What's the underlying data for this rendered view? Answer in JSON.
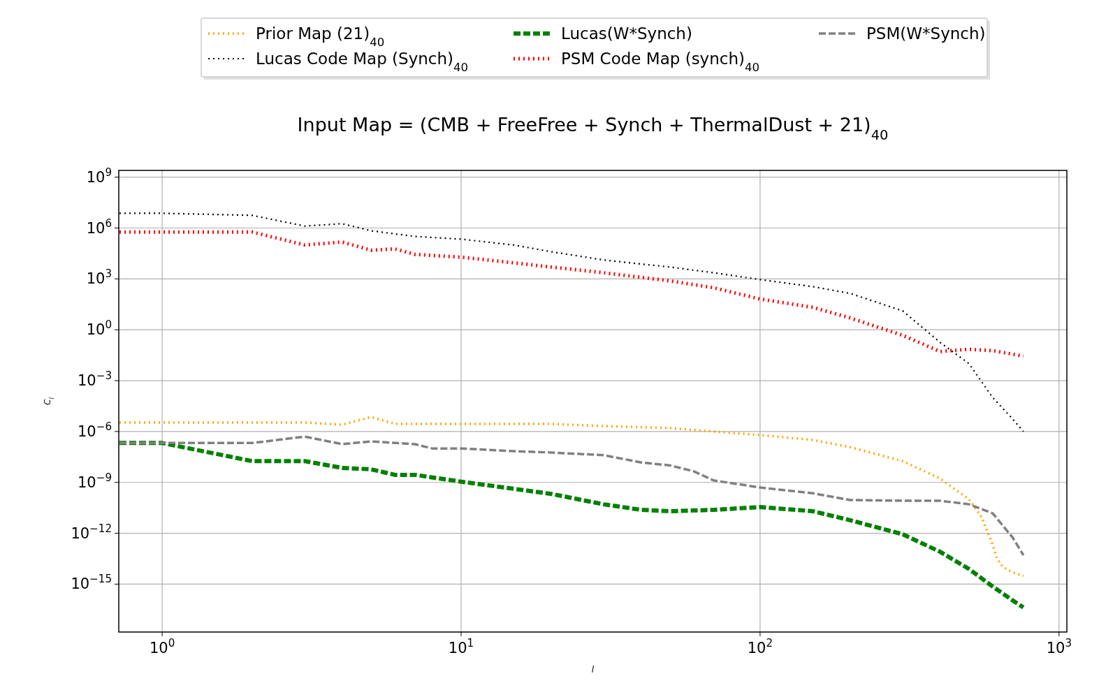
{
  "chart_data": {
    "type": "line",
    "title": "Input Map  = (CMB + FreeFree + Synch + ThermalDust + 21)$_{40}$",
    "xlabel": "l",
    "ylabel": "C$_{l}$",
    "log": "xy",
    "grid": true,
    "legend": "top",
    "xlim": [
      0.716,
      1062
    ],
    "ylim": [
      1.5e-18,
      2500000000.0
    ],
    "xticks": [
      {
        "value": 1,
        "label": "10$^{0}$"
      },
      {
        "value": 10,
        "label": "10$^{1}$"
      },
      {
        "value": 100,
        "label": "10$^{2}$"
      },
      {
        "value": 1000,
        "label": "10$^{3}$"
      }
    ],
    "yticks": [
      {
        "value": 1e-15,
        "label": "10$^{−15}$"
      },
      {
        "value": 1e-12,
        "label": "10$^{−12}$"
      },
      {
        "value": 1e-09,
        "label": "10$^{−9}$"
      },
      {
        "value": 1e-06,
        "label": "10$^{−6}$"
      },
      {
        "value": 0.001,
        "label": "10$^{−3}$"
      },
      {
        "value": 1,
        "label": "10$^{0}$"
      },
      {
        "value": 1000.0,
        "label": "10$^{3}$"
      },
      {
        "value": 1000000.0,
        "label": "10$^{6}$"
      },
      {
        "value": 1000000000.0,
        "label": "10$^{9}$"
      }
    ],
    "series": [
      {
        "name": "Prior Map (21)$_{40}$",
        "color": "#ffa500",
        "line_style": "dotted",
        "x": [
          0.72,
          1,
          2,
          3,
          4,
          5,
          6,
          10,
          20,
          30,
          50,
          70,
          100,
          150,
          200,
          300,
          400,
          500,
          550,
          600,
          620,
          650,
          700,
          760
        ],
        "values": [
          3.4e-06,
          3.4e-06,
          3.4e-06,
          3.4e-06,
          2.5e-06,
          7.2e-06,
          2.8e-06,
          2.8e-06,
          2.8e-06,
          2.1e-06,
          1.6e-06,
          1e-06,
          6.2e-07,
          3.2e-07,
          1.2e-07,
          1.8e-08,
          1.7e-09,
          1e-10,
          9.3e-12,
          2.1e-13,
          3.2e-14,
          1e-14,
          5e-15,
          3e-15
        ]
      },
      {
        "name": "Lucas Code Map (Synch)$_{40}$",
        "color": "#000000",
        "line_style": "dotted",
        "x": [
          0.72,
          1,
          2,
          3,
          4,
          5,
          7,
          10,
          15,
          20,
          30,
          50,
          70,
          100,
          150,
          200,
          300,
          400,
          500,
          600,
          700,
          760
        ],
        "values": [
          7400000.0,
          7400000.0,
          5600000.0,
          1300000.0,
          1800000.0,
          690000.0,
          320000.0,
          220000.0,
          100000.0,
          40000.0,
          13000.0,
          5000.0,
          2300.0,
          910.0,
          350.0,
          140.0,
          13,
          0.18,
          0.01,
          0.0001,
          5.4e-06,
          1e-06
        ]
      },
      {
        "name": "Lucas(W*Synch)",
        "color": "#008000",
        "line_style": "dashed",
        "x": [
          0.72,
          1,
          2,
          3,
          4,
          5,
          6,
          7,
          10,
          15,
          20,
          30,
          40,
          50,
          70,
          100,
          150,
          200,
          300,
          400,
          500,
          600,
          700,
          760
        ],
        "values": [
          2.1e-07,
          2.1e-07,
          1.8e-08,
          1.8e-08,
          7.1e-09,
          5.9e-09,
          2.8e-09,
          2.8e-09,
          1.1e-09,
          4.2e-10,
          2.1e-10,
          5.1e-11,
          2.4e-11,
          2e-11,
          2.4e-11,
          3.5e-11,
          2e-11,
          5.9e-12,
          8.7e-13,
          8.1e-14,
          7.8e-15,
          7.2e-16,
          1.1e-16,
          4.2e-17
        ]
      },
      {
        "name": "PSM Code Map (synch)$_{40}$",
        "color": "#ff0000",
        "line_style": "dotted",
        "x": [
          0.72,
          1,
          2,
          3,
          4,
          5,
          6,
          7,
          10,
          15,
          20,
          30,
          50,
          70,
          100,
          150,
          200,
          300,
          400,
          500,
          600,
          760
        ],
        "values": [
          580000.0,
          580000.0,
          580000.0,
          100000.0,
          150000.0,
          49000.0,
          59000.0,
          28000.0,
          19000.0,
          8900.0,
          5000.0,
          2300.0,
          760.0,
          300.0,
          65,
          21,
          5.0,
          0.47,
          0.052,
          0.071,
          0.059,
          0.028
        ]
      },
      {
        "name": "PSM(W*Synch)",
        "color": "#808080",
        "line_style": "dashed",
        "x": [
          0.72,
          1,
          2,
          3,
          4,
          5,
          7,
          8,
          10,
          15,
          20,
          30,
          40,
          50,
          60,
          70,
          100,
          150,
          200,
          300,
          400,
          500,
          600,
          700,
          760
        ],
        "values": [
          2.1e-07,
          2.1e-07,
          2.1e-07,
          5e-07,
          1.8e-07,
          2.6e-07,
          1.8e-07,
          1e-07,
          1e-07,
          6.9e-08,
          5.8e-08,
          4e-08,
          1.5e-08,
          1e-08,
          4.5e-09,
          1.3e-09,
          5e-10,
          2.3e-10,
          9.1e-11,
          8.3e-11,
          8.3e-11,
          5.1e-11,
          1.5e-11,
          5.5e-13,
          5.1e-14
        ]
      }
    ]
  }
}
